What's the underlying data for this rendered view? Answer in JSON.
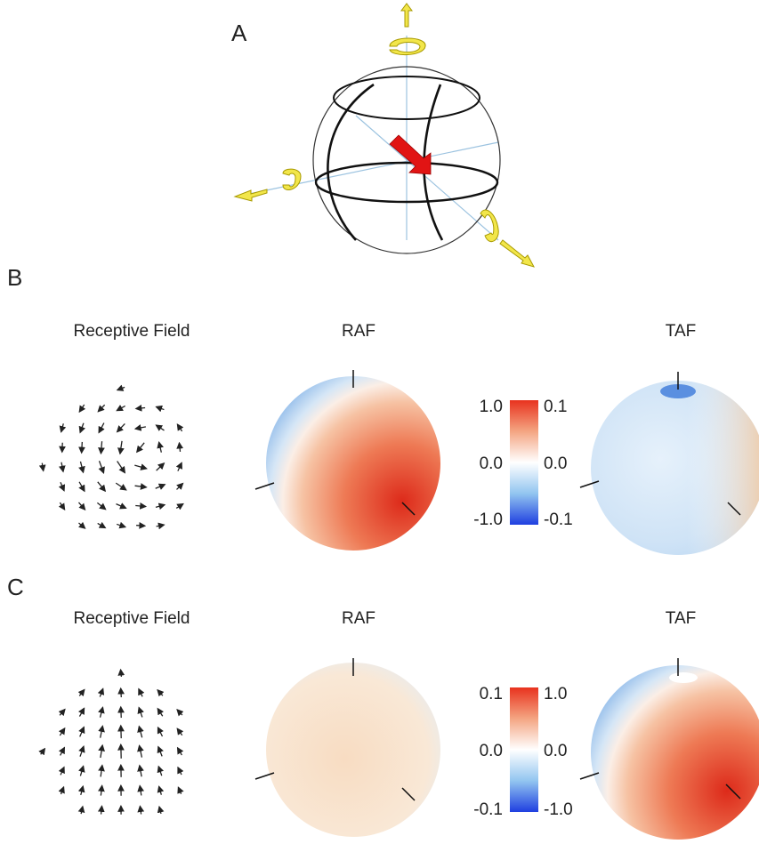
{
  "panels": [
    {
      "label": "A"
    },
    {
      "label": "B",
      "titles": [
        "Receptive Field",
        "RAF",
        "TAF"
      ],
      "colorbar": {
        "left": [
          "1.0",
          "0.0",
          "-1.0"
        ],
        "right": [
          "0.1",
          "0.0",
          "-0.1"
        ]
      }
    },
    {
      "label": "C",
      "titles": [
        "Receptive Field",
        "RAF",
        "TAF"
      ],
      "colorbar": {
        "left": [
          "0.1",
          "0.0",
          "-0.1"
        ],
        "right": [
          "1.0",
          "0.0",
          "-1.0"
        ]
      }
    }
  ]
}
